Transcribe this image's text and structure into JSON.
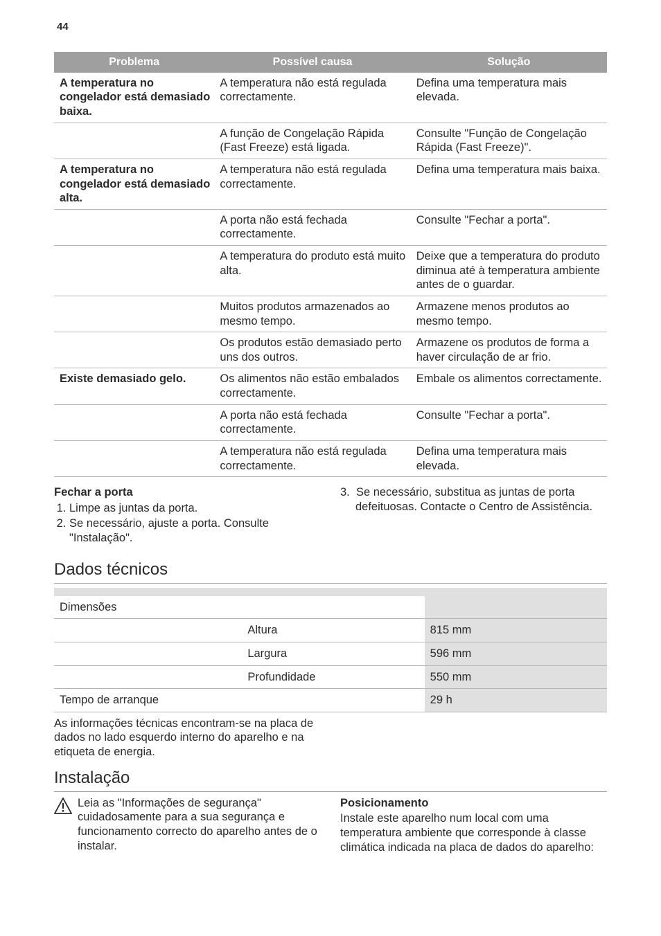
{
  "page_number": "44",
  "trouble_table": {
    "headers": [
      "Problema",
      "Possível causa",
      "Solução"
    ],
    "rows": [
      {
        "problem": "A temperatura no congelador está demasiado baixa.",
        "cause": "A temperatura não está regulada correctamente.",
        "solution": "Defina uma temperatura mais elevada."
      },
      {
        "problem": "",
        "cause": "A função de Congelação Rápida (Fast Freeze) está ligada.",
        "solution": "Consulte \"Função de Congelação Rápida (Fast Freeze)\"."
      },
      {
        "problem": "A temperatura no congelador está demasiado alta.",
        "cause": "A temperatura não está regulada correctamente.",
        "solution": "Defina uma temperatura mais baixa."
      },
      {
        "problem": "",
        "cause": "A porta não está fechada correctamente.",
        "solution": "Consulte \"Fechar a porta\"."
      },
      {
        "problem": "",
        "cause": "A temperatura do produto está muito alta.",
        "solution": "Deixe que a temperatura do produto diminua até à temperatura ambiente antes de o guardar."
      },
      {
        "problem": "",
        "cause": "Muitos produtos armazenados ao mesmo tempo.",
        "solution": "Armazene menos produtos ao mesmo tempo."
      },
      {
        "problem": "",
        "cause": "Os produtos estão demasiado perto uns dos outros.",
        "solution": "Armazene os produtos de forma a haver circulação de ar frio."
      },
      {
        "problem": "Existe demasiado gelo.",
        "cause": "Os alimentos não estão embalados correctamente.",
        "solution": "Embale os alimentos correctamente."
      },
      {
        "problem": "",
        "cause": "A porta não está fechada correctamente.",
        "solution": "Consulte \"Fechar a porta\"."
      },
      {
        "problem": "",
        "cause": "A temperatura não está regulada correctamente.",
        "solution": "Defina uma temperatura mais elevada."
      }
    ]
  },
  "close_door": {
    "title": "Fechar a porta",
    "left": [
      "Limpe as juntas da porta.",
      "Se necessário, ajuste a porta. Consulte \"Instalação\"."
    ],
    "right_num": "3.",
    "right_text": "Se necessário, substitua as juntas de porta defeituosas. Contacte o Centro de Assistência."
  },
  "tech": {
    "title": "Dados técnicos",
    "rows": {
      "dim_label": "Dimensões",
      "height_label": "Altura",
      "height_val": "815 mm",
      "width_label": "Largura",
      "width_val": "596 mm",
      "depth_label": "Profundidade",
      "depth_val": "550 mm",
      "start_label": "Tempo de arranque",
      "start_val": "29 h"
    },
    "note": "As informações técnicas encontram-se na placa de dados no lado esquerdo interno do aparelho e na etiqueta de energia."
  },
  "install": {
    "title": "Instalação",
    "warning": "Leia as \"Informações de segurança\" cuidadosamente para a sua segurança e funcionamento correcto do aparelho antes de o instalar.",
    "pos_title": "Posicionamento",
    "pos_text": "Instale este aparelho num local com uma temperatura ambiente que corresponde à classe climática indicada na placa de dados do aparelho:"
  },
  "colors": {
    "header_bg": "#9f9f9f",
    "header_fg": "#ffffff",
    "border": "#b5b5b5",
    "shade": "#e0e0e0",
    "text": "#2b2b2b"
  }
}
